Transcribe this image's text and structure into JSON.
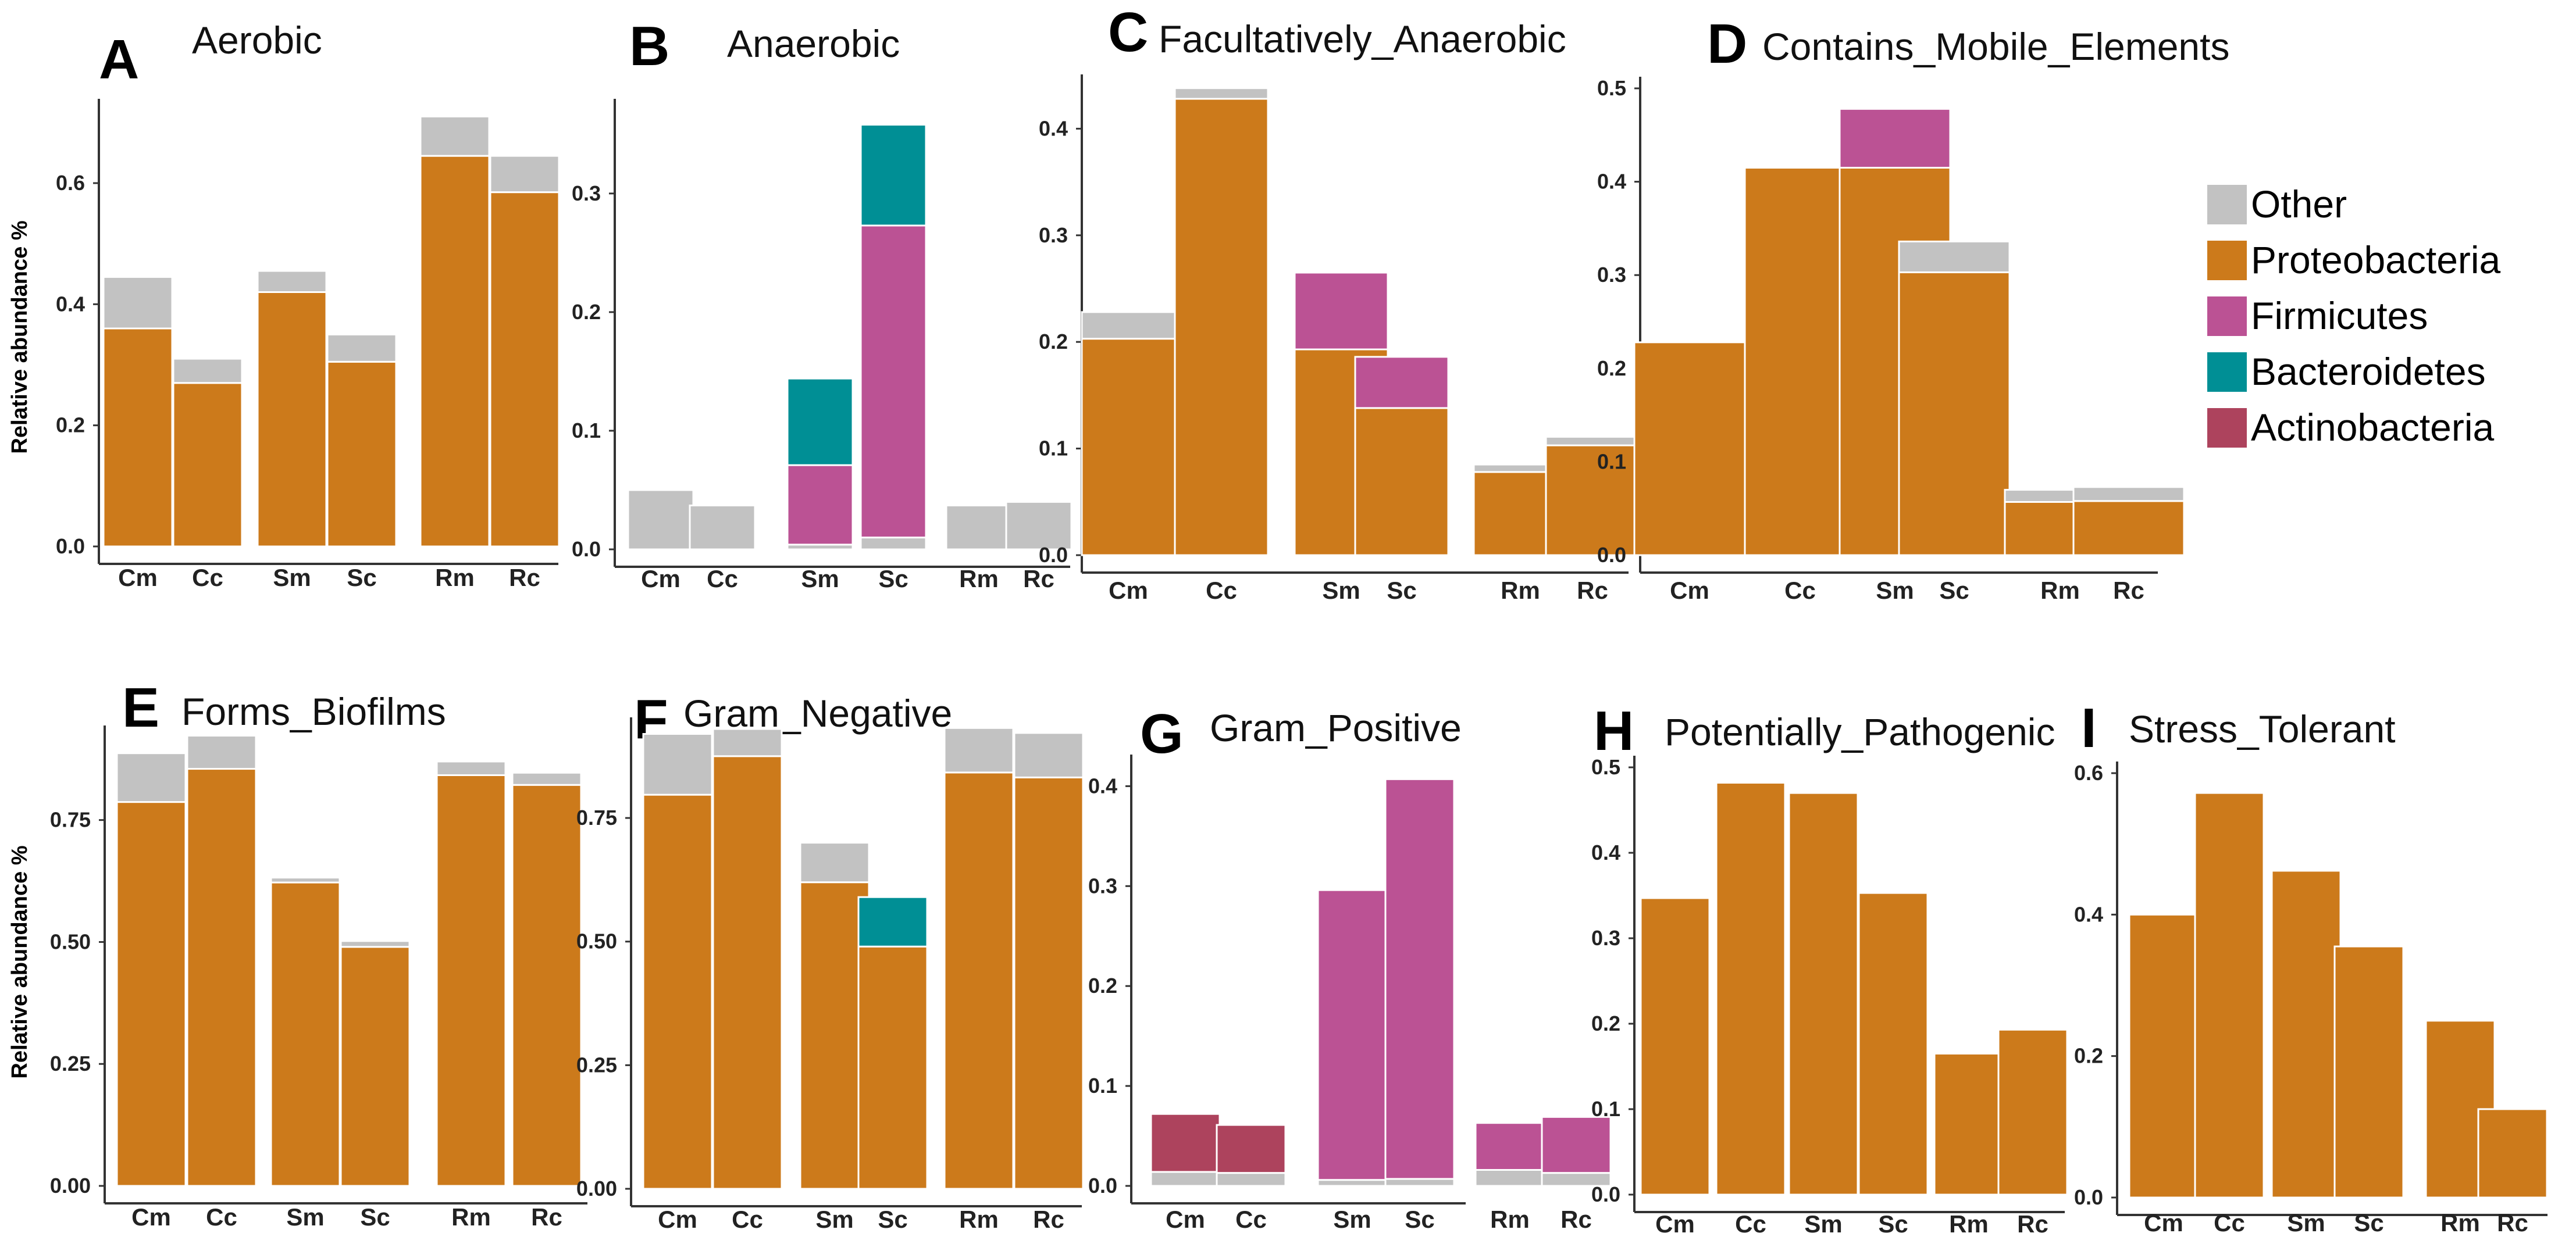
{
  "colors": {
    "Other": "#c2c2c2",
    "Proteobacteria": "#cc7a1b",
    "Firmicutes": "#bb5294",
    "Bacteroidetes": "#008f95",
    "Actinobacteria": "#ad435d"
  },
  "legend": {
    "items": [
      "Other",
      "Proteobacteria",
      "Firmicutes",
      "Bacteroidetes",
      "Actinobacteria"
    ]
  },
  "ylabel_top": "Relative abundance %",
  "ylabel_bottom": "Relative abundance %",
  "chart_data": [
    {
      "type": "bar",
      "stacked": true,
      "letter": "A",
      "title": "Aerobic",
      "categories": [
        "Cm",
        "Cc",
        "Sm",
        "Sc",
        "Rm",
        "Rc"
      ],
      "ylim": [
        0,
        0.72
      ],
      "ticks": [
        0.0,
        0.2,
        0.4,
        0.6
      ],
      "tick_labels": [
        "0.0",
        "0.2",
        "0.4",
        "0.6"
      ],
      "series": [
        {
          "name": "Proteobacteria",
          "values": [
            0.36,
            0.27,
            0.42,
            0.305,
            0.645,
            0.585
          ]
        },
        {
          "name": "Other",
          "values": [
            0.085,
            0.04,
            0.035,
            0.045,
            0.065,
            0.06
          ]
        }
      ]
    },
    {
      "type": "bar",
      "stacked": true,
      "letter": "B",
      "title": "Anaerobic",
      "categories": [
        "Cm",
        "Cc",
        "Sm",
        "Sc",
        "Rm",
        "Rc"
      ],
      "ylim": [
        0,
        0.37
      ],
      "ticks": [
        0.0,
        0.1,
        0.2,
        0.3
      ],
      "tick_labels": [
        "0.0",
        "0.1",
        "0.2",
        "0.3"
      ],
      "series": [
        {
          "name": "Other",
          "values": [
            0.05,
            0.037,
            0.004,
            0.01,
            0.037,
            0.04
          ]
        },
        {
          "name": "Firmicutes",
          "values": [
            0,
            0,
            0.067,
            0.263,
            0,
            0
          ]
        },
        {
          "name": "Bacteroidetes",
          "values": [
            0,
            0,
            0.073,
            0.085,
            0,
            0
          ]
        }
      ]
    },
    {
      "type": "bar",
      "stacked": true,
      "letter": "C",
      "title": "Facultatively_Anaerobic",
      "categories": [
        "Cm",
        "Cc",
        "Sm",
        "Sc",
        "Rm",
        "Rc"
      ],
      "ylim": [
        0,
        0.44
      ],
      "ticks": [
        0.0,
        0.1,
        0.2,
        0.3,
        0.4
      ],
      "tick_labels": [
        "0.0",
        "0.1",
        "0.2",
        "0.3",
        "0.4"
      ],
      "series": [
        {
          "name": "Proteobacteria",
          "values": [
            0.203,
            0.428,
            0.193,
            0.138,
            0.078,
            0.103
          ]
        },
        {
          "name": "Firmicutes",
          "values": [
            0,
            0,
            0.072,
            0.048,
            0,
            0
          ]
        },
        {
          "name": "Other",
          "values": [
            0.025,
            0.01,
            0,
            0,
            0.007,
            0.008
          ]
        }
      ]
    },
    {
      "type": "bar",
      "stacked": true,
      "letter": "D",
      "title": "Contains_Mobile_Elements",
      "categories": [
        "Cm",
        "Cc",
        "Sm",
        "Sc",
        "Rm",
        "Rc"
      ],
      "ylim": [
        0,
        0.5
      ],
      "ticks": [
        0.0,
        0.1,
        0.2,
        0.3,
        0.4,
        0.5
      ],
      "tick_labels": [
        "0.0",
        "0.1",
        "0.2",
        "0.3",
        "0.4",
        "0.5"
      ],
      "series": [
        {
          "name": "Proteobacteria",
          "values": [
            0.228,
            0.415,
            0.415,
            0.303,
            0.057,
            0.058
          ]
        },
        {
          "name": "Firmicutes",
          "values": [
            0,
            0,
            0.063,
            0,
            0,
            0
          ]
        },
        {
          "name": "Other",
          "values": [
            0,
            0,
            0,
            0.033,
            0.013,
            0.015
          ]
        }
      ]
    },
    {
      "type": "bar",
      "stacked": true,
      "letter": "E",
      "title": "Forms_Biofilms",
      "categories": [
        "Cm",
        "Cc",
        "Sm",
        "Sc",
        "Rm",
        "Rc"
      ],
      "ylim": [
        0,
        0.92
      ],
      "ticks": [
        0.0,
        0.25,
        0.5,
        0.75
      ],
      "tick_labels": [
        "0.00",
        "0.25",
        "0.50",
        "0.75"
      ],
      "series": [
        {
          "name": "Proteobacteria",
          "values": [
            0.787,
            0.855,
            0.622,
            0.49,
            0.842,
            0.822
          ]
        },
        {
          "name": "Other",
          "values": [
            0.1,
            0.068,
            0.01,
            0.012,
            0.028,
            0.025
          ]
        }
      ]
    },
    {
      "type": "bar",
      "stacked": true,
      "letter": "F",
      "title": "Gram_Negative",
      "categories": [
        "Cm",
        "Cc",
        "Sm",
        "Sc",
        "Rm",
        "Rc"
      ],
      "ylim": [
        0,
        0.93
      ],
      "ticks": [
        0.0,
        0.25,
        0.5,
        0.75
      ],
      "tick_labels": [
        "0.00",
        "0.25",
        "0.50",
        "0.75"
      ],
      "series": [
        {
          "name": "Proteobacteria",
          "values": [
            0.797,
            0.875,
            0.62,
            0.49,
            0.842,
            0.832
          ]
        },
        {
          "name": "Bacteroidetes",
          "values": [
            0,
            0,
            0,
            0.1,
            0,
            0
          ]
        },
        {
          "name": "Other",
          "values": [
            0.123,
            0.055,
            0.08,
            0,
            0.09,
            0.09
          ]
        }
      ]
    },
    {
      "type": "bar",
      "stacked": true,
      "letter": "G",
      "title": "Gram_Positive",
      "categories": [
        "Cm",
        "Cc",
        "Sm",
        "Sc",
        "Rm",
        "Rc"
      ],
      "ylim": [
        0,
        0.42
      ],
      "ticks": [
        0.0,
        0.1,
        0.2,
        0.3,
        0.4
      ],
      "tick_labels": [
        "0.0",
        "0.1",
        "0.2",
        "0.3",
        "0.4"
      ],
      "series": [
        {
          "name": "Other",
          "values": [
            0.014,
            0.013,
            0.006,
            0.007,
            0.016,
            0.013
          ]
        },
        {
          "name": "Firmicutes",
          "values": [
            0,
            0,
            0.29,
            0.4,
            0.047,
            0.056
          ]
        },
        {
          "name": "Actinobacteria",
          "values": [
            0.058,
            0.048,
            0,
            0,
            0,
            0
          ]
        }
      ]
    },
    {
      "type": "bar",
      "stacked": true,
      "letter": "H",
      "title": "Potentially_Pathogenic",
      "categories": [
        "Cm",
        "Cc",
        "Sm",
        "Sc",
        "Rm",
        "Rc"
      ],
      "ylim": [
        0,
        0.5
      ],
      "ticks": [
        0.0,
        0.1,
        0.2,
        0.3,
        0.4,
        0.5
      ],
      "tick_labels": [
        "0.0",
        "0.1",
        "0.2",
        "0.3",
        "0.4",
        "0.5"
      ],
      "series": [
        {
          "name": "Proteobacteria",
          "values": [
            0.347,
            0.482,
            0.47,
            0.353,
            0.165,
            0.193
          ]
        }
      ]
    },
    {
      "type": "bar",
      "stacked": true,
      "letter": "I",
      "title": "Stress_Tolerant",
      "categories": [
        "Cm",
        "Cc",
        "Sm",
        "Sc",
        "Rm",
        "Rc"
      ],
      "ylim": [
        0,
        0.6
      ],
      "ticks": [
        0.0,
        0.2,
        0.4,
        0.6
      ],
      "tick_labels": [
        "0.0",
        "0.2",
        "0.4",
        "0.6"
      ],
      "series": [
        {
          "name": "Proteobacteria",
          "values": [
            0.4,
            0.572,
            0.462,
            0.355,
            0.25,
            0.125
          ]
        }
      ]
    }
  ]
}
